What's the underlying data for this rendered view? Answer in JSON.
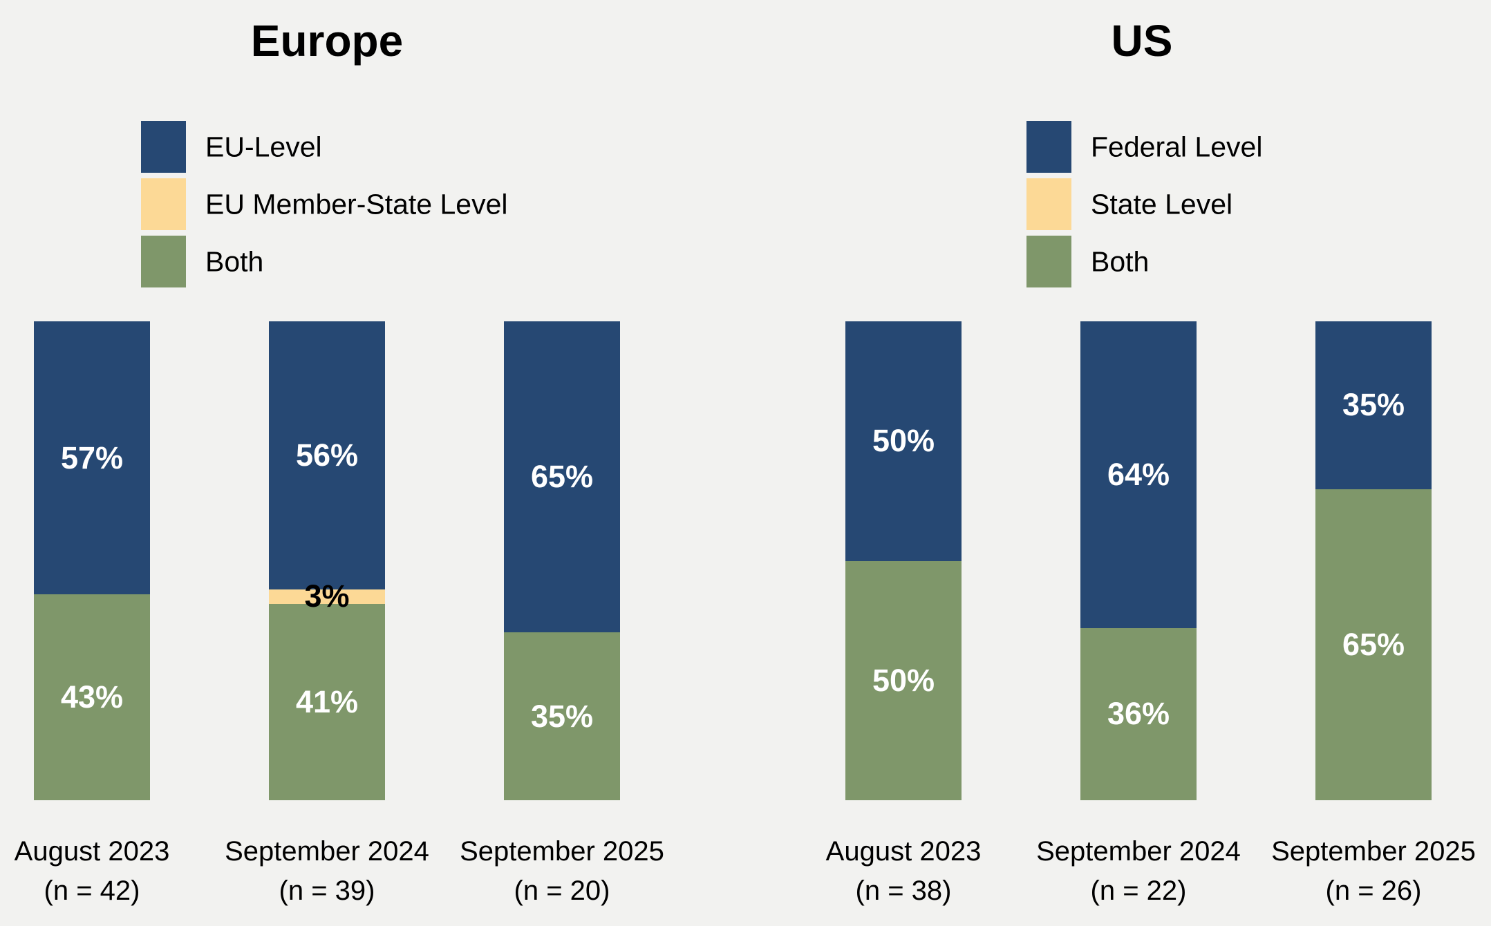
{
  "background_color": "#F2F2F0",
  "text_color": "#000000",
  "chart_data": [
    {
      "type": "bar",
      "stacked": true,
      "title": "Europe",
      "grid": false,
      "legend_position": "top-left",
      "ylim": [
        0,
        100
      ],
      "value_suffix": "%",
      "legend": [
        {
          "label": "EU-Level",
          "color": "#264873",
          "value_label_color": "#FFFFFF"
        },
        {
          "label": "EU Member-State Level",
          "color": "#FCD996",
          "value_label_color": "#000000"
        },
        {
          "label": "Both",
          "color": "#7F976A",
          "value_label_color": "#FFFFFF"
        }
      ],
      "categories": [
        {
          "label": "August 2023",
          "n_label": "(n = 42)"
        },
        {
          "label": "September 2024",
          "n_label": "(n = 39)"
        },
        {
          "label": "September 2025",
          "n_label": "(n = 20)"
        }
      ],
      "series": [
        {
          "name": "EU-Level",
          "values": [
            57,
            56,
            65
          ]
        },
        {
          "name": "EU Member-State Level",
          "values": [
            0,
            3,
            0
          ]
        },
        {
          "name": "Both",
          "values": [
            43,
            41,
            35
          ]
        }
      ]
    },
    {
      "type": "bar",
      "stacked": true,
      "title": "US",
      "grid": false,
      "legend_position": "top-left",
      "ylim": [
        0,
        100
      ],
      "value_suffix": "%",
      "legend": [
        {
          "label": "Federal Level",
          "color": "#264873",
          "value_label_color": "#FFFFFF"
        },
        {
          "label": "State Level",
          "color": "#FCD996",
          "value_label_color": "#000000"
        },
        {
          "label": "Both",
          "color": "#7F976A",
          "value_label_color": "#FFFFFF"
        }
      ],
      "categories": [
        {
          "label": "August 2023",
          "n_label": "(n = 38)"
        },
        {
          "label": "September 2024",
          "n_label": "(n = 22)"
        },
        {
          "label": "September 2025",
          "n_label": "(n = 26)"
        }
      ],
      "series": [
        {
          "name": "Federal Level",
          "values": [
            50,
            64,
            35
          ]
        },
        {
          "name": "State Level",
          "values": [
            0,
            0,
            0
          ]
        },
        {
          "name": "Both",
          "values": [
            50,
            36,
            65
          ]
        }
      ]
    }
  ]
}
